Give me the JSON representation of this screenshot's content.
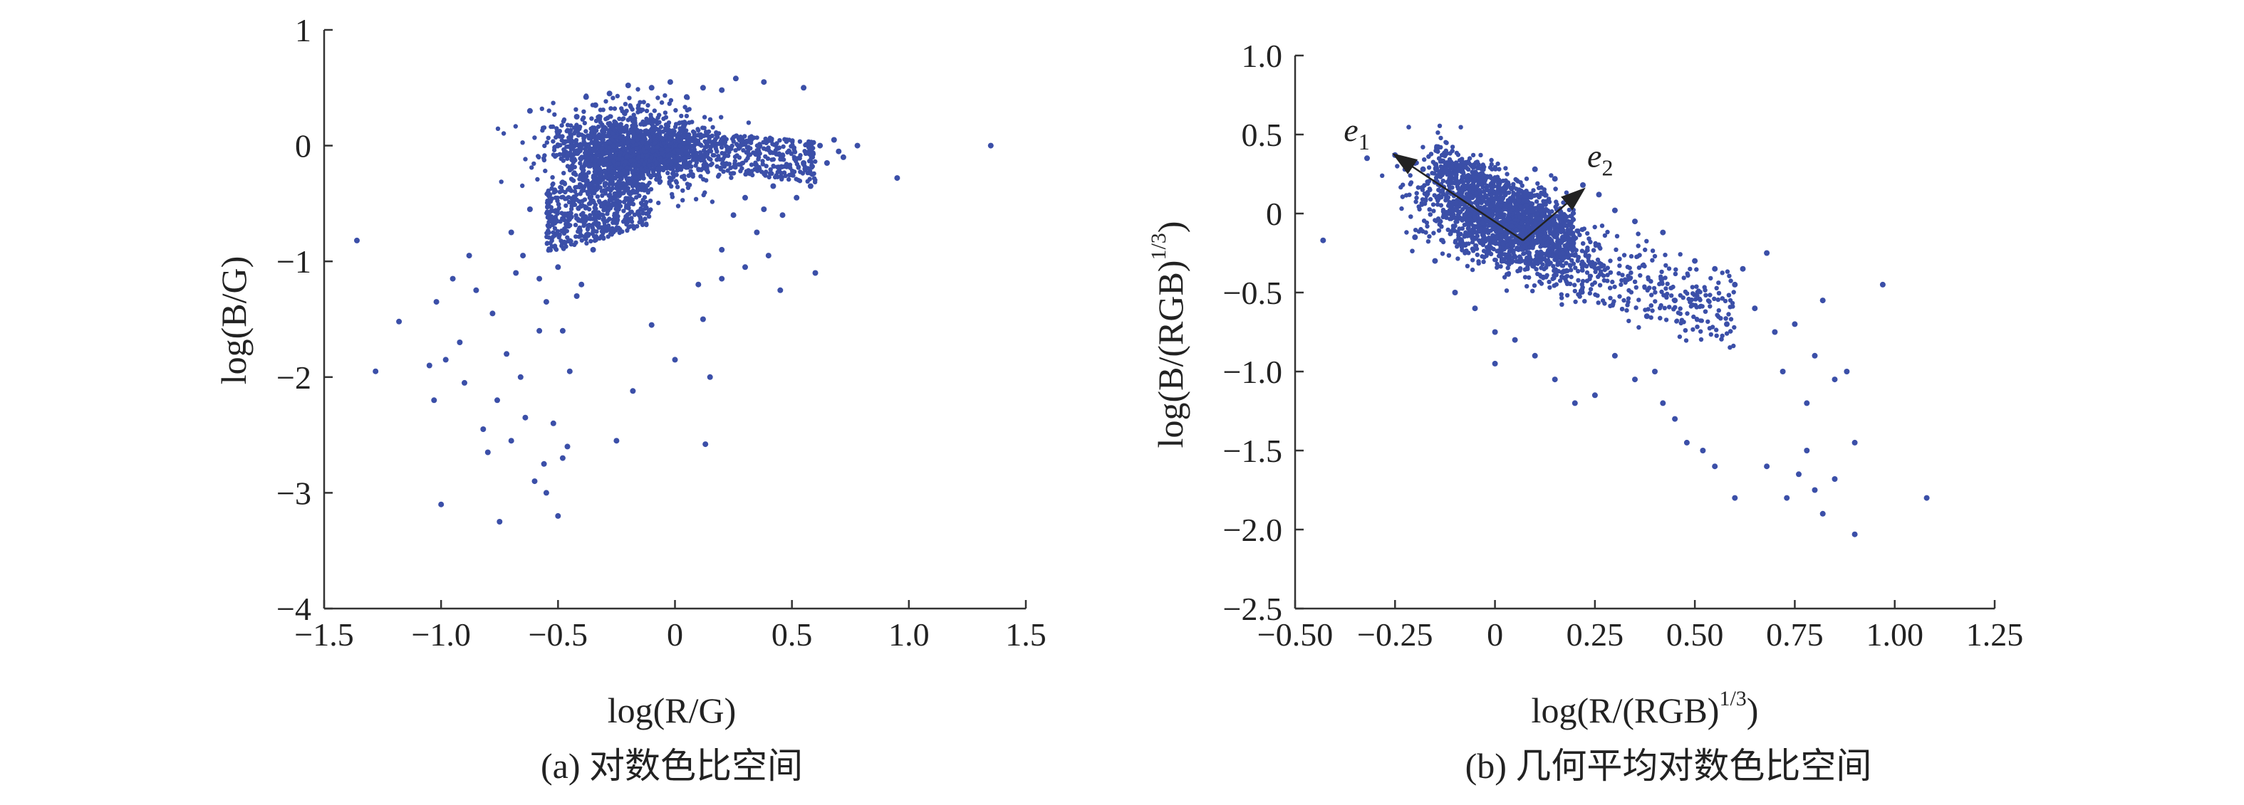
{
  "chart_data": [
    {
      "type": "scatter",
      "xlabel": "log(R/G)",
      "ylabel": "log(B/G)",
      "caption": "(a) 对数色比空间",
      "xlim": [
        -1.5,
        1.5
      ],
      "ylim": [
        -4,
        1
      ],
      "xticks": [
        -1.5,
        -1.0,
        -0.5,
        0,
        0.5,
        1.0,
        1.5
      ],
      "xtick_labels": [
        "−1.5",
        "−1.0",
        "−0.5",
        "0",
        "0.5",
        "1.0",
        "1.5"
      ],
      "yticks": [
        -4,
        -3,
        -2,
        -1,
        0,
        1
      ],
      "ytick_labels": [
        "−4",
        "−3",
        "−2",
        "−1",
        "0",
        "1"
      ],
      "grid": false,
      "color": "#3b4fa8",
      "series": [
        {
          "points": [
            [
              -1.36,
              -0.82
            ],
            [
              -1.28,
              -1.95
            ],
            [
              -1.18,
              -1.52
            ],
            [
              -1.05,
              -1.9
            ],
            [
              -1.03,
              -2.2
            ],
            [
              -1.02,
              -1.35
            ],
            [
              -1.0,
              -3.1
            ],
            [
              -0.98,
              -1.85
            ],
            [
              -0.95,
              -1.15
            ],
            [
              -0.92,
              -1.7
            ],
            [
              -0.9,
              -2.05
            ],
            [
              -0.88,
              -0.95
            ],
            [
              -0.85,
              -1.25
            ],
            [
              -0.82,
              -2.45
            ],
            [
              -0.8,
              -2.65
            ],
            [
              -0.78,
              -1.45
            ],
            [
              -0.76,
              -2.2
            ],
            [
              -0.75,
              -3.25
            ],
            [
              -0.72,
              -1.8
            ],
            [
              -0.7,
              -2.55
            ],
            [
              -0.68,
              -1.1
            ],
            [
              -0.66,
              -2.0
            ],
            [
              -0.64,
              -2.35
            ],
            [
              -0.62,
              0.3
            ],
            [
              -0.6,
              -2.9
            ],
            [
              -0.58,
              -1.6
            ],
            [
              -0.56,
              -2.75
            ],
            [
              -0.55,
              -3.0
            ],
            [
              -0.52,
              -2.4
            ],
            [
              -0.5,
              -3.2
            ],
            [
              -0.48,
              -2.7
            ],
            [
              -0.46,
              -2.6
            ],
            [
              -0.45,
              -1.95
            ],
            [
              -0.42,
              -1.3
            ],
            [
              -0.25,
              -2.55
            ],
            [
              -0.18,
              -2.12
            ],
            [
              -0.1,
              -1.55
            ],
            [
              0.0,
              -1.85
            ],
            [
              0.12,
              -1.5
            ],
            [
              0.15,
              -2.0
            ],
            [
              0.13,
              -2.58
            ],
            [
              0.2,
              -1.15
            ],
            [
              0.25,
              -0.6
            ],
            [
              0.3,
              -0.45
            ],
            [
              0.35,
              -0.75
            ],
            [
              0.42,
              -0.35
            ],
            [
              0.45,
              -1.25
            ],
            [
              0.5,
              -0.25
            ],
            [
              0.55,
              -0.15
            ],
            [
              0.6,
              -1.1
            ],
            [
              0.62,
              0.0
            ],
            [
              0.7,
              -0.05
            ],
            [
              0.78,
              0.0
            ],
            [
              0.95,
              -0.28
            ],
            [
              1.35,
              0.0
            ],
            [
              0.55,
              0.5
            ],
            [
              0.38,
              0.55
            ],
            [
              0.26,
              0.58
            ],
            [
              0.2,
              0.48
            ],
            [
              0.12,
              0.5
            ],
            [
              0.05,
              0.42
            ],
            [
              -0.02,
              0.55
            ],
            [
              -0.1,
              0.5
            ],
            [
              -0.2,
              0.52
            ],
            [
              -0.28,
              0.45
            ],
            [
              -0.38,
              0.42
            ],
            [
              -0.34,
              0.35
            ],
            [
              -0.42,
              0.25
            ],
            [
              -0.5,
              0.1
            ],
            [
              -0.62,
              -0.55
            ],
            [
              -0.7,
              -0.75
            ],
            [
              -0.65,
              -0.95
            ],
            [
              -0.58,
              -1.15
            ],
            [
              -0.55,
              -1.35
            ],
            [
              -0.5,
              -1.05
            ],
            [
              -0.48,
              -1.6
            ],
            [
              -0.4,
              -1.2
            ],
            [
              -0.35,
              -0.9
            ],
            [
              -0.3,
              -0.7
            ],
            [
              0.1,
              -1.2
            ],
            [
              0.2,
              -0.9
            ],
            [
              0.3,
              -1.05
            ],
            [
              0.4,
              -0.95
            ],
            [
              0.38,
              -0.55
            ],
            [
              0.46,
              -0.6
            ],
            [
              0.52,
              -0.45
            ],
            [
              0.58,
              -0.35
            ],
            [
              0.65,
              -0.15
            ],
            [
              0.72,
              -0.1
            ],
            [
              0.68,
              0.05
            ]
          ]
        }
      ]
    },
    {
      "type": "scatter",
      "xlabel": "log(R/(RGB)^(1/3))",
      "ylabel": "log(B/(RGB)^(1/3))",
      "caption": "(b) 几何平均对数色比空间",
      "xlim": [
        -0.5,
        1.25
      ],
      "ylim": [
        -2.5,
        1.0
      ],
      "xticks": [
        -0.5,
        -0.25,
        0,
        0.25,
        0.5,
        0.75,
        1.0,
        1.25
      ],
      "xtick_labels": [
        "−0.50",
        "−0.25",
        "0",
        "0.25",
        "0.50",
        "0.75",
        "1.00",
        "1.25"
      ],
      "yticks": [
        -2.5,
        -2.0,
        -1.5,
        -1.0,
        -0.5,
        0,
        0.5,
        1.0
      ],
      "ytick_labels": [
        "−2.5",
        "−2.0",
        "−1.5",
        "−1.0",
        "−0.5",
        "0",
        "0.5",
        "1.0"
      ],
      "grid": false,
      "color": "#3b4fa8",
      "annotations": [
        {
          "label": "e",
          "subscript": "1",
          "from": [
            0.07,
            -0.17
          ],
          "to": [
            -0.25,
            0.37
          ]
        },
        {
          "label": "e",
          "subscript": "2",
          "from": [
            0.07,
            -0.17
          ],
          "to": [
            0.22,
            0.15
          ]
        }
      ],
      "series": [
        {
          "points": [
            [
              -0.43,
              -0.17
            ],
            [
              -0.32,
              0.35
            ],
            [
              -0.25,
              0.37
            ],
            [
              -0.2,
              0.32
            ],
            [
              -0.18,
              0.28
            ],
            [
              -0.15,
              0.2
            ],
            [
              0.5,
              -0.3
            ],
            [
              0.55,
              -0.35
            ],
            [
              0.6,
              -0.45
            ],
            [
              0.65,
              -0.6
            ],
            [
              0.7,
              -0.75
            ],
            [
              0.72,
              -1.0
            ],
            [
              0.75,
              -0.7
            ],
            [
              0.78,
              -1.2
            ],
            [
              0.8,
              -0.9
            ],
            [
              0.82,
              -0.55
            ],
            [
              0.85,
              -1.05
            ],
            [
              0.88,
              -1.0
            ],
            [
              0.9,
              -1.45
            ],
            [
              0.97,
              -0.45
            ],
            [
              1.08,
              -1.8
            ],
            [
              0.9,
              -2.03
            ],
            [
              0.85,
              -1.68
            ],
            [
              0.82,
              -1.9
            ],
            [
              0.8,
              -1.75
            ],
            [
              0.78,
              -1.5
            ],
            [
              0.76,
              -1.65
            ],
            [
              0.73,
              -1.8
            ],
            [
              0.68,
              -1.6
            ],
            [
              0.6,
              -1.8
            ],
            [
              0.55,
              -1.6
            ],
            [
              0.52,
              -1.5
            ],
            [
              0.48,
              -1.45
            ],
            [
              0.45,
              -1.3
            ],
            [
              0.42,
              -1.2
            ],
            [
              0.4,
              -1.0
            ],
            [
              0.35,
              -1.05
            ],
            [
              0.3,
              -0.9
            ],
            [
              0.25,
              -1.15
            ],
            [
              0.2,
              -1.2
            ],
            [
              0.15,
              -1.05
            ],
            [
              0.1,
              -0.9
            ],
            [
              0.05,
              -0.8
            ],
            [
              0.0,
              -0.75
            ],
            [
              -0.05,
              -0.6
            ],
            [
              -0.1,
              -0.5
            ],
            [
              -0.15,
              -0.3
            ],
            [
              -0.2,
              -0.15
            ],
            [
              0.0,
              -0.95
            ],
            [
              0.38,
              -0.65
            ],
            [
              0.45,
              -0.55
            ],
            [
              0.58,
              -0.7
            ],
            [
              0.62,
              -0.35
            ],
            [
              0.68,
              -0.25
            ],
            [
              0.02,
              0.15
            ],
            [
              0.1,
              0.28
            ],
            [
              0.15,
              0.22
            ],
            [
              0.18,
              0.1
            ],
            [
              0.22,
              0.18
            ],
            [
              0.26,
              0.12
            ],
            [
              0.3,
              0.02
            ],
            [
              0.35,
              -0.05
            ],
            [
              0.42,
              -0.12
            ]
          ]
        }
      ]
    }
  ]
}
